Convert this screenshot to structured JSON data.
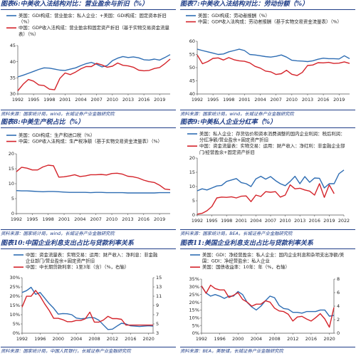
{
  "panels": [
    {
      "title_num": "图表6:",
      "title": "中美收入法结构对比：营业盈余与折旧（%）",
      "source": "资料来源：国家统计局，wind，长城证券产业金融研究院",
      "chart_data": {
        "type": "line",
        "x": [
          1992,
          1993,
          1994,
          1995,
          1996,
          1997,
          1998,
          1999,
          2000,
          2001,
          2002,
          2003,
          2004,
          2005,
          2006,
          2007,
          2008,
          2009,
          2010,
          2011,
          2012,
          2013,
          2014,
          2015,
          2016,
          2017,
          2018,
          2019,
          2020,
          2021
        ],
        "xticks": [
          1992,
          1995,
          1998,
          2001,
          2004,
          2007,
          2010,
          2013,
          2016,
          2019
        ],
        "ylim": [
          30,
          45
        ],
        "yticks": [
          30,
          35,
          40,
          45
        ],
        "legend": [
          "美国：GDI构成：营业盈余：私人企业：+美国：GDI构成：固定资本折旧（%）",
          "中国：GDP收入法构成：营业盈余和固定资产折旧（基于实物交易资金流量表）（%）"
        ],
        "series": [
          {
            "name": "美国：GDI构成：营业盈余：私人企业：+美国：GDI构成：固定资本折旧（%）",
            "color": "#2e6db3",
            "values": [
              35.3,
              35.8,
              36.4,
              37.0,
              37.6,
              38.1,
              38.0,
              37.7,
              37.4,
              37.3,
              37.7,
              38.1,
              38.8,
              39.4,
              39.8,
              39.2,
              38.4,
              38.8,
              40.3,
              41.1,
              41.6,
              41.3,
              41.5,
              41.2,
              40.6,
              40.5,
              40.8,
              40.5,
              41.3,
              42.2
            ]
          },
          {
            "name": "中国：GDP收入法构成：营业盈余和固定资产折旧（基于实物交易资金流量表）（%）",
            "color": "#d4232a",
            "values": [
              31.0,
              33.0,
              34.5,
              34.0,
              32.8,
              32.6,
              31.5,
              31.3,
              34.8,
              36.5,
              36.0,
              36.8,
              37.8,
              38.5,
              38.5,
              39.5,
              39.0,
              38.3,
              38.6,
              39.6,
              38.9,
              38.7,
              38.3,
              37.4,
              37.2,
              37.3,
              37.9,
              38.2,
              39.4,
              40.8
            ]
          }
        ]
      }
    },
    {
      "title_num": "图表7:",
      "title": "中美收入法结构对比：劳动份额（%）",
      "source": "资料来源：国家统计局，wind，长城证券产业金融研究院",
      "chart_data": {
        "type": "line",
        "x": [
          1992,
          1993,
          1994,
          1995,
          1996,
          1997,
          1998,
          1999,
          2000,
          2001,
          2002,
          2003,
          2004,
          2005,
          2006,
          2007,
          2008,
          2009,
          2010,
          2011,
          2012,
          2013,
          2014,
          2015,
          2016,
          2017,
          2018,
          2019,
          2020,
          2021
        ],
        "xticks": [
          1992,
          1995,
          1998,
          2001,
          2004,
          2007,
          2010,
          2013,
          2016,
          2019
        ],
        "ylim": [
          40,
          60
        ],
        "yticks": [
          40,
          45,
          50,
          55,
          60
        ],
        "legend": [
          "美国：GDI构成：劳动者报酬（%）",
          "中国：GDP收入法构成：劳动者报酬（基于实物交易资金流量表）（%）"
        ],
        "series": [
          {
            "name": "美国：GDI构成：劳动者报酬（%）",
            "color": "#2e6db3",
            "values": [
              57.0,
              56.5,
              56.0,
              55.5,
              55.0,
              55.2,
              56.0,
              56.5,
              57.0,
              56.5,
              55.0,
              54.8,
              54.5,
              54.2,
              54.0,
              54.3,
              54.8,
              54.0,
              52.8,
              52.6,
              52.5,
              52.3,
              52.6,
              53.2,
              53.6,
              53.4,
              53.4,
              53.3,
              54.5,
              53.4
            ]
          },
          {
            "name": "中国：GDP收入法构成：劳动者报酬（基于实物交易资金流量表）（%）",
            "color": "#d4232a",
            "values": [
              54.8,
              51.5,
              52.3,
              53.5,
              53.7,
              52.9,
              53.8,
              53.0,
              52.6,
              52.4,
              51.8,
              50.5,
              49.8,
              48.7,
              48.4,
              47.4,
              47.7,
              49.0,
              47.5,
              47.0,
              48.2,
              50.8,
              51.0,
              51.9,
              51.8,
              52.0,
              51.6,
              51.7,
              52.2,
              51.6
            ]
          }
        ]
      }
    },
    {
      "title_num": "图表8:",
      "title": "中美生产税占比（%）",
      "source": "资料来源：国家统计局，wind，长城证券产业金融研究院",
      "chart_data": {
        "type": "line",
        "x": [
          1992,
          1993,
          1994,
          1995,
          1996,
          1997,
          1998,
          1999,
          2000,
          2001,
          2002,
          2003,
          2004,
          2005,
          2006,
          2007,
          2008,
          2009,
          2010,
          2011,
          2012,
          2013,
          2014,
          2015,
          2016,
          2017,
          2018,
          2019,
          2020,
          2021
        ],
        "xticks": [
          1992,
          1995,
          1998,
          2001,
          2004,
          2007,
          2010,
          2013,
          2016,
          2019
        ],
        "ylim": [
          0,
          20
        ],
        "yticks": [
          0,
          5,
          10,
          15,
          20
        ],
        "legend": [
          "美国：GDI构成：生产和进口税（%）",
          "中国：GDP收入法构成：生产税净额（基于实物交易资金流量表）（%）"
        ],
        "series": [
          {
            "name": "美国：GDI构成：生产和进口税（%）",
            "color": "#2e6db3",
            "values": [
              7.7,
              7.6,
              7.6,
              7.5,
              7.4,
              7.3,
              7.4,
              7.4,
              7.3,
              7.2,
              7.1,
              7.1,
              7.1,
              7.1,
              7.0,
              7.1,
              7.1,
              7.0,
              7.0,
              7.0,
              7.0,
              6.9,
              6.9,
              6.9,
              6.9,
              6.9,
              6.9,
              7.0,
              7.0,
              7.0
            ]
          },
          {
            "name": "中国：GDP收入法构成：生产税净额（基于实物交易资金流量表）（%）",
            "color": "#d4232a",
            "values": [
              14.0,
              15.5,
              15.2,
              14.6,
              14.6,
              15.6,
              16.2,
              16.0,
              12.2,
              12.3,
              12.6,
              13.0,
              12.4,
              12.6,
              13.0,
              13.0,
              13.1,
              12.9,
              13.4,
              13.5,
              13.2,
              12.5,
              12.3,
              11.9,
              11.2,
              10.7,
              10.4,
              9.5,
              8.2,
              8.0
            ]
          }
        ]
      }
    },
    {
      "title_num": "图表9:",
      "title": "中美私人企业分红率（%）",
      "source": "资料来源：国家统计局，BEA，长城证券产业金融研究院",
      "chart_data": {
        "type": "line",
        "x": [
          1992,
          1993,
          1994,
          1995,
          1996,
          1997,
          1998,
          1999,
          2000,
          2001,
          2002,
          2003,
          2004,
          2005,
          2006,
          2007,
          2008,
          2009,
          2010,
          2011,
          2012,
          2013,
          2014,
          2015,
          2016,
          2017,
          2018,
          2019,
          2020,
          2021,
          2022
        ],
        "xticks": [
          1992,
          1995,
          1998,
          2001,
          2004,
          2007,
          2010,
          2013,
          2016,
          2019,
          2022
        ],
        "ylim": [
          0,
          20
        ],
        "yticks": [
          0,
          5,
          10,
          15,
          20
        ],
        "legend": [
          "美国：私人企业：存货估价和资本消费调整的国内企业利润：税后利润：分红净额/营业盈余+固定资产折旧",
          "中国：资金流量表：实物交易：运用：财产收入：净红利：非金融企业部门/经营盈余+固定资产折旧"
        ],
        "series": [
          {
            "name": "美国：私人企业：存货估价和资本消费调整的国内企业利润：税后利润：分红净额/营业盈余+固定资产折旧",
            "color": "#2e6db3",
            "values": [
              8.5,
              9.2,
              8.8,
              9.5,
              10.2,
              10.4,
              11.8,
              12.3,
              12.8,
              11.4,
              11.0,
              10.0,
              12.7,
              13.6,
              12.6,
              13.5,
              12.1,
              11.0,
              10.3,
              11.8,
              13.6,
              11.0,
              13.5,
              11.5,
              13.0,
              12.9,
              9.5,
              11.0,
              11.0,
              14.5,
              15.8
            ]
          },
          {
            "name": "中国：资金流量表：实物交易：运用：财产收入：净红利：非金融企业部门/经营盈余+固定资产折旧",
            "color": "#d4232a",
            "values": [
              0.3,
              0.6,
              1.5,
              3.0,
              6.0,
              6.3,
              6.2,
              6.4,
              6.0,
              6.6,
              6.7,
              4.7,
              7.0,
              6.5,
              8.2,
              8.0,
              8.2,
              6.3,
              7.0,
              10.6,
              9.2,
              9.4,
              8.8,
              8.4,
              7.0,
              11.0,
              6.2,
              10.6,
              7.5,
              null,
              null
            ]
          }
        ]
      }
    },
    {
      "title_num": "图表10:",
      "title": "中国企业利息支出占比与贷款利率关系",
      "source": "资料来源：国家统计局，中国人民银行，长城证券产业金融研究院",
      "chart_data": {
        "type": "line",
        "x": [
          1992,
          1993,
          1994,
          1995,
          1996,
          1997,
          1998,
          1999,
          2000,
          2001,
          2002,
          2003,
          2004,
          2005,
          2006,
          2007,
          2008,
          2009,
          2010,
          2011,
          2012,
          2013,
          2014,
          2015,
          2016,
          2017,
          2018,
          2019,
          2020,
          2021
        ],
        "xticks": [
          1992,
          1996,
          2000,
          2004,
          2008,
          2012,
          2016,
          2020
        ],
        "ylim": [
          0,
          30
        ],
        "yticks": [
          0,
          5,
          10,
          15,
          20,
          25,
          30
        ],
        "y2lim": [
          3,
          15
        ],
        "y2ticks": [
          3,
          5,
          7,
          9,
          11,
          13,
          15
        ],
        "legend": [
          "中国：资金流量表：实物交易：运用：财产收入：净利息：非金融企业部门/营业盈余+固定资产折旧",
          "中国：中长期贷款利率：1至3年（含）（%，右轴）"
        ],
        "series": [
          {
            "name": "中国：资金流量表：实物交易：运用：财产收入：净利息：非金融企业部门/营业盈余+固定资产折旧",
            "color": "#2e6db3",
            "axis": "left",
            "values": [
              22.0,
              23.0,
              24.8,
              21.0,
              22.0,
              19.0,
              16.0,
              13.5,
              10.3,
              10.6,
              10.5,
              10.0,
              8.2,
              7.8,
              8.0,
              8.5,
              8.3,
              7.0,
              4.5,
              2.0,
              2.2,
              3.8,
              5.4,
              5.0,
              4.0,
              3.8,
              3.6,
              3.8,
              4.0,
              3.8
            ]
          },
          {
            "name": "中国：中长期贷款利率：1至3年（含）（%，右轴）",
            "color": "#d4232a",
            "axis": "right",
            "values": [
              8.64,
              10.98,
              10.98,
              12.24,
              10.98,
              9.36,
              7.92,
              6.21,
              6.21,
              5.94,
              5.49,
              5.49,
              5.76,
              5.76,
              6.12,
              7.56,
              5.4,
              5.4,
              5.85,
              6.65,
              6.15,
              6.15,
              6.0,
              4.75,
              4.75,
              4.75,
              4.75,
              4.75,
              4.75,
              4.75
            ]
          }
        ]
      }
    },
    {
      "title_num": "图表11:",
      "title": "美国企业利息支出占比与贷款利率关系",
      "source": "资料来源：BEA，美联储，长城证券产业金融研究院",
      "chart_data": {
        "type": "line",
        "x": [
          1992,
          1993,
          1994,
          1995,
          1996,
          1997,
          1998,
          1999,
          2000,
          2001,
          2002,
          2003,
          2004,
          2005,
          2006,
          2007,
          2008,
          2009,
          2010,
          2011,
          2012,
          2013,
          2014,
          2015,
          2016,
          2017,
          2018,
          2019,
          2020,
          2021
        ],
        "xticks": [
          1992,
          1996,
          2000,
          2004,
          2008,
          2012,
          2016,
          2020
        ],
        "ylim": [
          0,
          35
        ],
        "yticks": [
          0,
          5,
          10,
          15,
          20,
          25,
          30,
          35
        ],
        "y2lim": [
          0,
          8
        ],
        "y2ticks": [
          0,
          2,
          4,
          6,
          8
        ],
        "legend": [
          "美国：GDI：净经营盈余：私人企业：国内企业利息和杂项支出净额/美国：GDI：净经营盈余：私人企业",
          "美国：国债收益率：10年：年（%，右轴）"
        ],
        "series": [
          {
            "name": "美国：GDI：净经营盈余：私人企业：国内企业利息和杂项支出净额/美国：GDI：净经营盈余：私人企业",
            "color": "#2e6db3",
            "axis": "left",
            "values": [
              30.5,
              26.0,
              24.0,
              25.0,
              24.0,
              22.5,
              24.0,
              24.0,
              27.0,
              25.0,
              20.0,
              17.0,
              15.0,
              17.5,
              21.0,
              24.0,
              23.0,
              18.0,
              16.0,
              15.5,
              13.5,
              13.5,
              13.0,
              14.0,
              14.0,
              14.0,
              15.0,
              15.0,
              11.0,
              11.5
            ]
          },
          {
            "name": "美国：国债收益率：10年：年（%，右轴）",
            "color": "#d4232a",
            "axis": "right",
            "values": [
              7.0,
              5.9,
              7.1,
              6.6,
              6.4,
              6.4,
              5.3,
              5.6,
              6.0,
              5.0,
              4.6,
              4.0,
              4.3,
              4.3,
              4.8,
              4.6,
              3.7,
              3.3,
              3.2,
              2.8,
              1.8,
              2.4,
              2.5,
              2.1,
              1.8,
              2.3,
              2.9,
              2.1,
              0.9,
              3.8
            ]
          }
        ]
      }
    }
  ]
}
